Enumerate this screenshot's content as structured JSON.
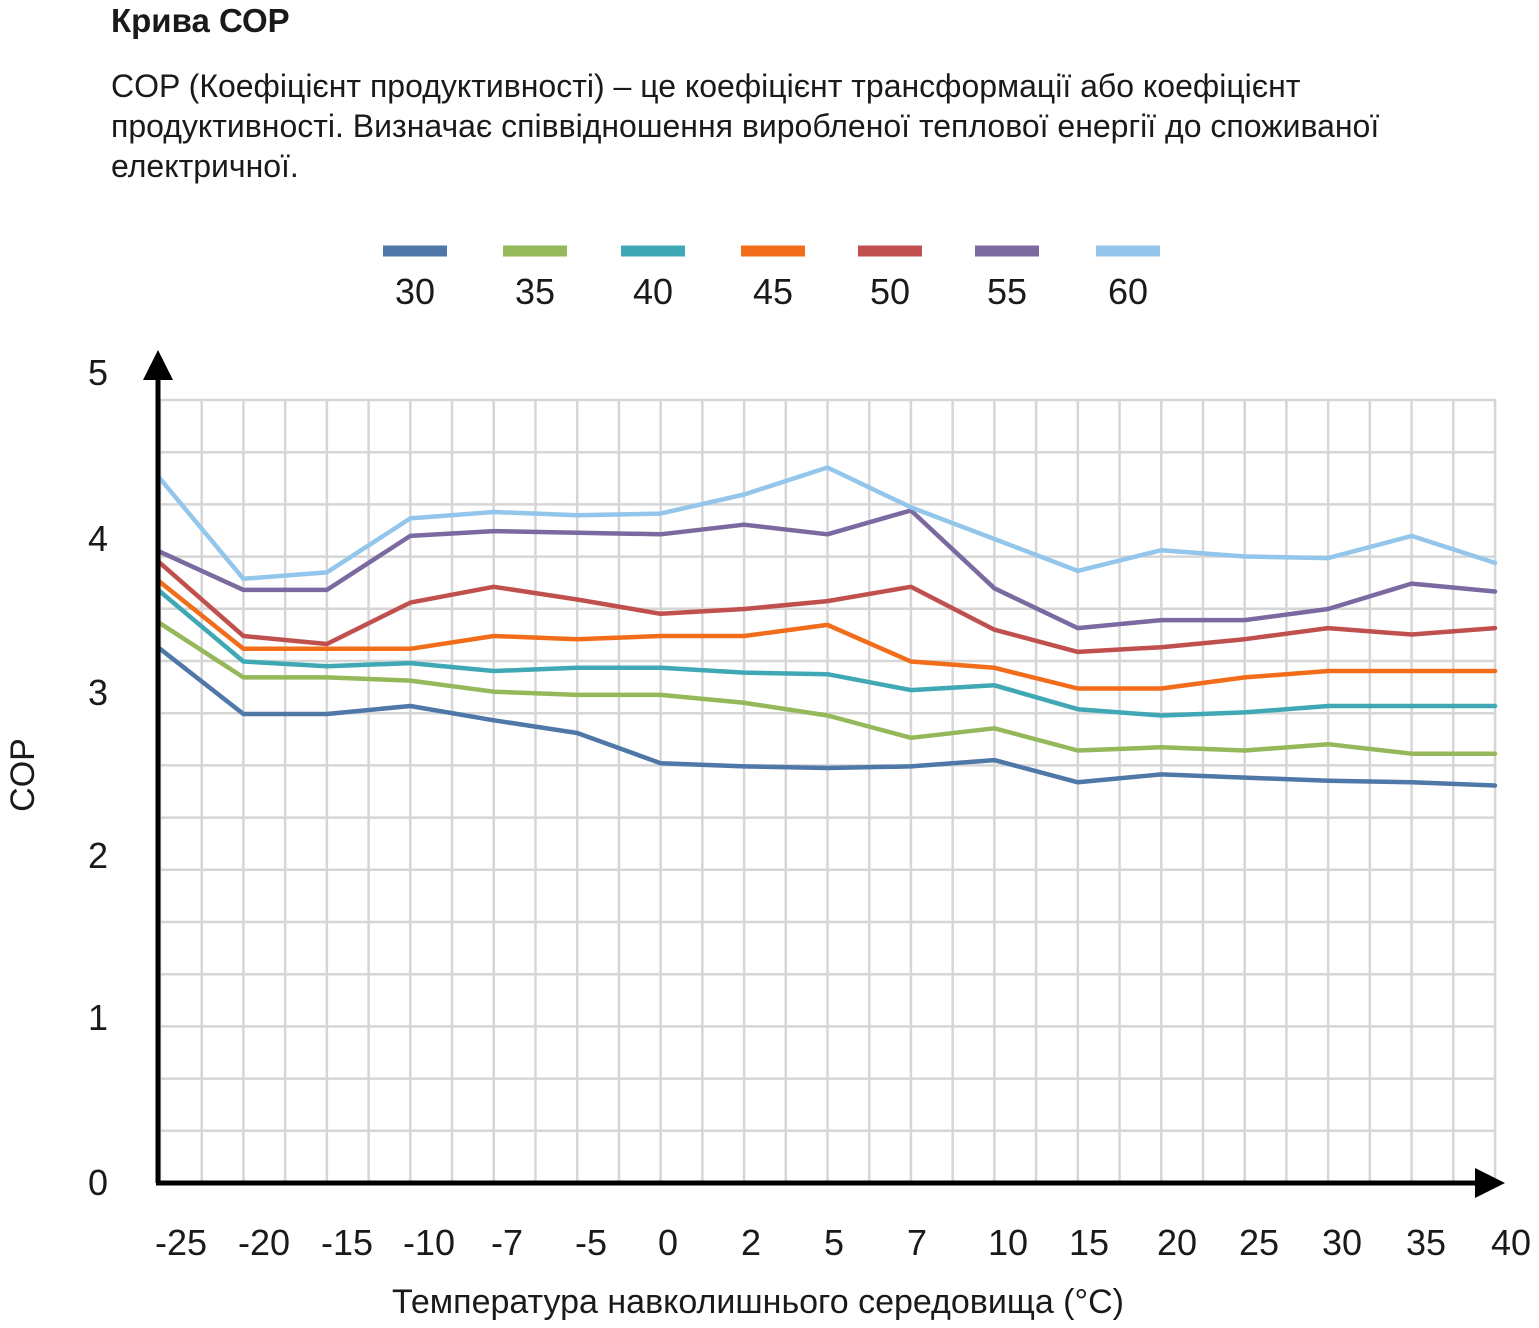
{
  "header": {
    "title": "Крива СОР",
    "description": "COP (Коефіцієнт продуктивності) – це коефіцієнт трансформації або коефіцієнт продуктивності. Визначає співвідношення виробленої теплової енергії до споживаної електричної."
  },
  "chart_data": {
    "type": "line",
    "xlabel": "Температура навколишнього середовища (°C)",
    "ylabel": "COP",
    "ylim": [
      0,
      5
    ],
    "yticks": [
      0,
      1,
      2,
      3,
      4,
      5
    ],
    "grid": true,
    "legend_position": "top",
    "categories": [
      "-25",
      "-20",
      "-15",
      "-10",
      "-7",
      "-5",
      "0",
      "2",
      "5",
      "7",
      "10",
      "15",
      "20",
      "25",
      "30",
      "35",
      "40"
    ],
    "series": [
      {
        "name": "30",
        "color": "#4f78a8",
        "values": [
          3.36,
          2.95,
          2.95,
          3.0,
          2.91,
          2.83,
          2.64,
          2.62,
          2.61,
          2.62,
          2.66,
          2.52,
          2.57,
          2.55,
          2.53,
          2.52,
          2.5
        ]
      },
      {
        "name": "35",
        "color": "#94b85a",
        "values": [
          3.52,
          3.18,
          3.18,
          3.16,
          3.09,
          3.07,
          3.07,
          3.02,
          2.94,
          2.8,
          2.86,
          2.72,
          2.74,
          2.72,
          2.76,
          2.7,
          2.7
        ]
      },
      {
        "name": "40",
        "color": "#3fa8b4",
        "values": [
          3.72,
          3.28,
          3.25,
          3.27,
          3.22,
          3.24,
          3.24,
          3.21,
          3.2,
          3.1,
          3.13,
          2.98,
          2.94,
          2.96,
          3.0,
          3.0,
          3.0
        ]
      },
      {
        "name": "45",
        "color": "#f26d1a",
        "values": [
          3.78,
          3.36,
          3.36,
          3.36,
          3.44,
          3.42,
          3.44,
          3.44,
          3.51,
          3.28,
          3.24,
          3.11,
          3.11,
          3.18,
          3.22,
          3.22,
          3.22
        ]
      },
      {
        "name": "50",
        "color": "#c0504d",
        "values": [
          3.9,
          3.44,
          3.39,
          3.65,
          3.75,
          3.67,
          3.58,
          3.61,
          3.66,
          3.75,
          3.48,
          3.34,
          3.37,
          3.42,
          3.49,
          3.45,
          3.49
        ]
      },
      {
        "name": "55",
        "color": "#7b6aa0",
        "values": [
          3.97,
          3.73,
          3.73,
          4.07,
          4.1,
          4.09,
          4.08,
          4.14,
          4.08,
          4.23,
          3.74,
          3.49,
          3.54,
          3.54,
          3.61,
          3.77,
          3.72
        ]
      },
      {
        "name": "60",
        "color": "#93c6ea",
        "values": [
          4.43,
          3.8,
          3.84,
          4.18,
          4.22,
          4.2,
          4.21,
          4.33,
          4.5,
          4.25,
          4.05,
          3.85,
          3.98,
          3.94,
          3.93,
          4.07,
          3.9
        ]
      }
    ]
  }
}
